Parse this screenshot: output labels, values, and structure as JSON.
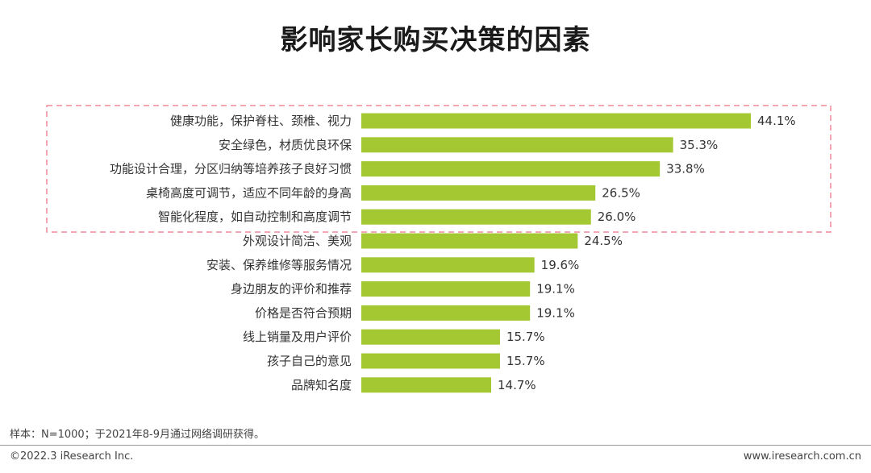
{
  "title": "影响家长购买决策的因素",
  "footer": {
    "note": "样本：N=1000；于2021年8-9月通过网络调研获得。",
    "copyright": "©2022.3 iResearch Inc.",
    "website": "www.iresearch.com.cn"
  },
  "colors": {
    "bar": "#a4c832",
    "highlight_border": "#f08a9a"
  },
  "chart_data": {
    "type": "bar",
    "orientation": "horizontal",
    "categories": [
      "健康功能，保护脊柱、颈椎、视力",
      "安全绿色，材质优良环保",
      "功能设计合理，分区归纳等培养孩子良好习惯",
      "桌椅高度可调节，适应不同年龄的身高",
      "智能化程度，如自动控制和高度调节",
      "外观设计简洁、美观",
      "安装、保养维修等服务情况",
      "身边朋友的评价和推荐",
      "价格是否符合预期",
      "线上销量及用户评价",
      "孩子自己的意见",
      "品牌知名度"
    ],
    "values": [
      44.1,
      35.3,
      33.8,
      26.5,
      26.0,
      24.5,
      19.6,
      19.1,
      19.1,
      15.7,
      15.7,
      14.7
    ],
    "value_labels": [
      "44.1%",
      "35.3%",
      "33.8%",
      "26.5%",
      "26.0%",
      "24.5%",
      "19.6%",
      "19.1%",
      "19.1%",
      "15.7%",
      "15.7%",
      "14.7%"
    ],
    "unit": "%",
    "highlighted_categories": 5,
    "grid": false,
    "legend": "none"
  }
}
